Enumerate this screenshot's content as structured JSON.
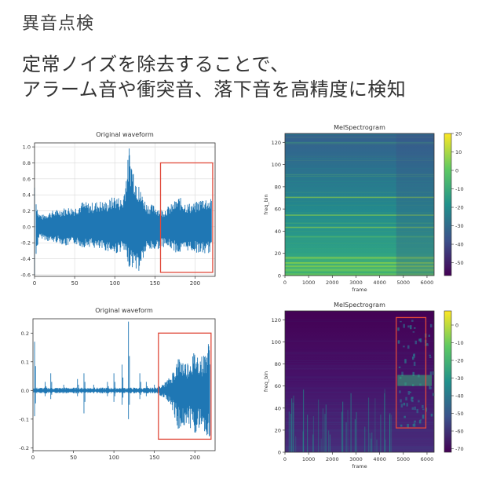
{
  "slide": {
    "title": "異音点検",
    "headline_line1": "定常ノイズを除去することで、",
    "headline_line2": "アラーム音や衝突音、落下音を高精度に検知"
  },
  "colors": {
    "waveform": "#1f77b4",
    "highlight_box": "#e0493a",
    "axes": "#333333",
    "grid": "#d9d9d9"
  },
  "chart_data": [
    {
      "type": "line",
      "title": "Original waveform",
      "xlabel": "",
      "ylabel": "",
      "xlim": [
        0,
        225
      ],
      "ylim": [
        -0.62,
        1.05
      ],
      "xticks": [
        0,
        50,
        100,
        150,
        200
      ],
      "yticks": [
        -0.6,
        -0.4,
        -0.2,
        0.0,
        0.2,
        0.4,
        0.6,
        0.8,
        1.0
      ],
      "ytick_labels": [
        "-0.6",
        "-0.4",
        "-0.2",
        "0.0",
        "0.2",
        "0.4",
        "0.6",
        "0.8",
        "1.0"
      ],
      "grid": true,
      "series": [
        {
          "x": [
            0,
            5,
            10,
            20,
            30,
            40,
            50,
            60,
            70,
            80,
            90,
            100,
            110,
            118,
            130,
            140,
            150,
            160,
            170,
            180,
            190,
            200,
            210,
            220
          ],
          "envelope_max": [
            0.49,
            0.18,
            0.15,
            0.2,
            0.22,
            0.25,
            0.25,
            0.32,
            0.3,
            0.33,
            0.32,
            0.4,
            0.35,
            0.98,
            0.5,
            0.3,
            0.27,
            0.22,
            0.28,
            0.38,
            0.3,
            0.3,
            0.38,
            0.35
          ],
          "envelope_min": [
            -0.6,
            -0.15,
            -0.15,
            -0.2,
            -0.2,
            -0.25,
            -0.22,
            -0.26,
            -0.25,
            -0.3,
            -0.3,
            -0.35,
            -0.3,
            -0.5,
            -0.55,
            -0.3,
            -0.3,
            -0.25,
            -0.28,
            -0.35,
            -0.3,
            -0.32,
            -0.35,
            -0.33
          ]
        }
      ],
      "highlight_x": [
        157,
        222
      ],
      "highlight_y": [
        -0.57,
        0.8
      ]
    },
    {
      "type": "heatmap",
      "title": "MelSpectrogram",
      "xlabel": "frame",
      "ylabel": "freq_bin",
      "xlim": [
        0,
        6300
      ],
      "ylim": [
        0,
        128
      ],
      "xticks": [
        0,
        1000,
        2000,
        3000,
        4000,
        5000,
        6000
      ],
      "yticks": [
        0,
        20,
        40,
        60,
        80,
        100,
        120
      ],
      "colorbar_ticks": [
        20,
        10,
        0,
        -10,
        -20,
        -30,
        -40,
        -50
      ],
      "colorbar_range": [
        -57,
        20
      ]
    },
    {
      "type": "line",
      "title": "Original waveform",
      "xlabel": "",
      "ylabel": "",
      "xlim": [
        0,
        225
      ],
      "ylim": [
        -0.21,
        0.25
      ],
      "xticks": [
        0,
        50,
        100,
        150,
        200
      ],
      "yticks": [
        -0.2,
        -0.1,
        0.0,
        0.1,
        0.2
      ],
      "ytick_labels": [
        "-0.2",
        "-0.1",
        "0.0",
        "0.1",
        "0.2"
      ],
      "grid": false,
      "series": [
        {
          "spikes_x": [
            2,
            15,
            22,
            38,
            55,
            63,
            75,
            92,
            100,
            110,
            118,
            132,
            140,
            150
          ],
          "spikes_max": [
            0.17,
            0.03,
            0.06,
            0.02,
            0.04,
            0.06,
            0.02,
            0.03,
            0.06,
            0.09,
            0.24,
            0.06,
            0.03,
            0.02
          ],
          "spikes_min": [
            -0.09,
            -0.02,
            -0.03,
            -0.01,
            -0.02,
            -0.08,
            -0.01,
            -0.02,
            -0.04,
            -0.05,
            -0.1,
            -0.03,
            -0.02,
            -0.01
          ],
          "burst_x": [
            160,
            170,
            180,
            190,
            200,
            210,
            218
          ],
          "burst_max": [
            0.02,
            0.05,
            0.12,
            0.1,
            0.14,
            0.12,
            0.18
          ],
          "burst_min": [
            -0.02,
            -0.05,
            -0.14,
            -0.12,
            -0.15,
            -0.13,
            -0.19
          ]
        }
      ],
      "highlight_x": [
        155,
        220
      ],
      "highlight_y": [
        -0.17,
        0.2
      ]
    },
    {
      "type": "heatmap",
      "title": "MelSpectrogram",
      "xlabel": "frame",
      "ylabel": "freq_bin",
      "xlim": [
        0,
        6300
      ],
      "ylim": [
        0,
        128
      ],
      "xticks": [
        0,
        1000,
        2000,
        3000,
        4000,
        5000,
        6000
      ],
      "yticks": [
        0,
        20,
        40,
        60,
        80,
        100,
        120
      ],
      "colorbar_ticks": [
        0,
        -10,
        -20,
        -30,
        -40,
        -50,
        -60,
        -70
      ],
      "colorbar_range": [
        -72,
        8
      ],
      "highlight_x": [
        4700,
        5950
      ],
      "highlight_y": [
        22,
        122
      ]
    }
  ]
}
